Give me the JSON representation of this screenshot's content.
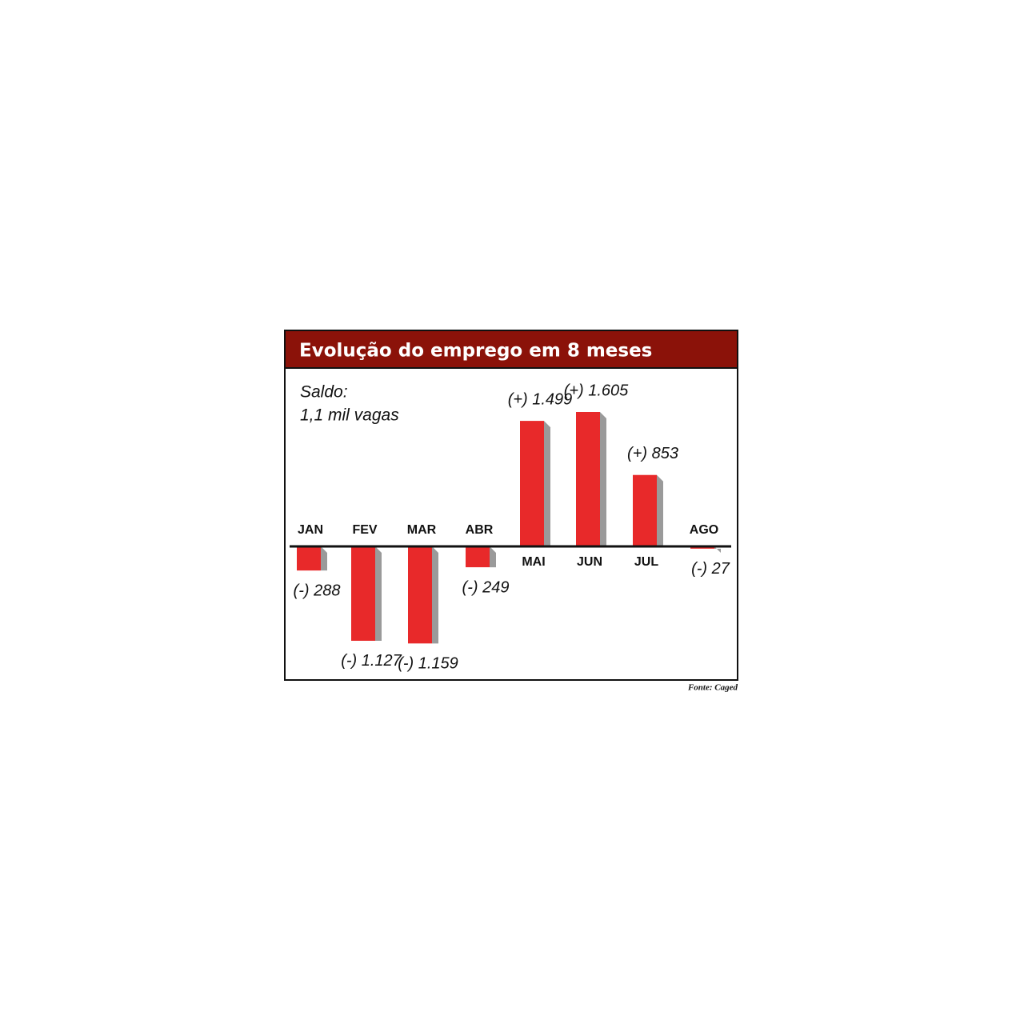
{
  "chart_data": {
    "type": "bar",
    "title": "Evolução do emprego em 8 meses",
    "annotation": [
      "Saldo:",
      "1,1 mil vagas"
    ],
    "source": "Fonte: Caged",
    "categories": [
      "JAN",
      "FEV",
      "MAR",
      "ABR",
      "MAI",
      "JUN",
      "JUL",
      "AGO"
    ],
    "values": [
      -288,
      -1127,
      -1159,
      -249,
      1499,
      1605,
      853,
      -27
    ],
    "value_labels": [
      "(-) 288",
      "(-) 1.127",
      "(-) 1.159",
      "(-) 249",
      "(+) 1.499",
      "(+) 1.605",
      "(+) 853",
      "(-) 27"
    ],
    "color": "#e8292a"
  }
}
